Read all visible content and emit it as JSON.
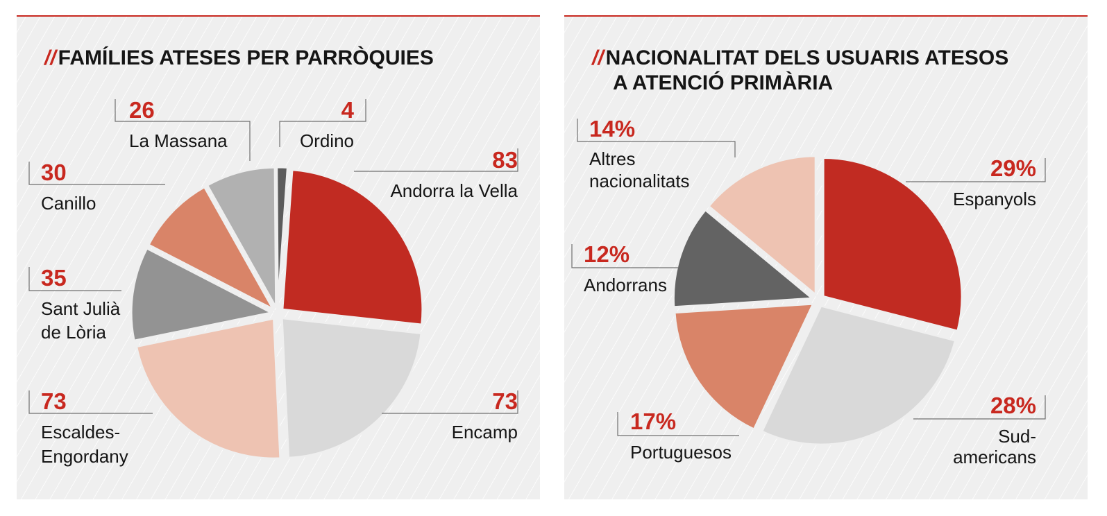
{
  "chart_data": [
    {
      "type": "pie",
      "title": "FAMÍLIES ATESES PER PARRÒQUIES",
      "title_prefix": "//",
      "unit": "families",
      "slices": [
        {
          "label": "Andorra la Vella",
          "value": 83,
          "display": "83",
          "color": "#c12b22",
          "label_lines": [
            "Andorra la Vella"
          ]
        },
        {
          "label": "Encamp",
          "value": 73,
          "display": "73",
          "color": "#d9d9d9",
          "label_lines": [
            "Encamp"
          ]
        },
        {
          "label": "Escaldes-Engordany",
          "value": 73,
          "display": "73",
          "color": "#eec3b2",
          "label_lines": [
            "Escaldes-",
            "Engordany"
          ]
        },
        {
          "label": "Sant Julià de Lòria",
          "value": 35,
          "display": "35",
          "color": "#939393",
          "label_lines": [
            "Sant Julià",
            "de Lòria"
          ]
        },
        {
          "label": "Canillo",
          "value": 30,
          "display": "30",
          "color": "#d98468",
          "label_lines": [
            "Canillo"
          ]
        },
        {
          "label": "La Massana",
          "value": 26,
          "display": "26",
          "color": "#b1b1b1",
          "label_lines": [
            "La Massana"
          ]
        },
        {
          "label": "Ordino",
          "value": 4,
          "display": "4",
          "color": "#5c5c5c",
          "label_lines": [
            "Ordino"
          ]
        }
      ]
    },
    {
      "type": "pie",
      "title": "NACIONALITAT DELS USUARIS ATESOS A ATENCIÓ PRIMÀRIA",
      "title_prefix": "//",
      "title_lines": [
        "NACIONALITAT DELS USUARIS ATESOS",
        "A ATENCIÓ PRIMÀRIA"
      ],
      "unit": "percent",
      "slices": [
        {
          "label": "Espanyols",
          "value": 29,
          "display": "29%",
          "color": "#c12b22",
          "label_lines": [
            "Espanyols"
          ]
        },
        {
          "label": "Sud-americans",
          "value": 28,
          "display": "28%",
          "color": "#d9d9d9",
          "label_lines": [
            "Sud-",
            "americans"
          ]
        },
        {
          "label": "Portuguesos",
          "value": 17,
          "display": "17%",
          "color": "#d98468",
          "label_lines": [
            "Portuguesos"
          ]
        },
        {
          "label": "Andorrans",
          "value": 12,
          "display": "12%",
          "color": "#636363",
          "label_lines": [
            "Andorrans"
          ]
        },
        {
          "label": "Altres nacionalitats",
          "value": 14,
          "display": "14%",
          "color": "#eec3b2",
          "label_lines": [
            "Altres",
            "nacionalitats"
          ]
        }
      ]
    }
  ]
}
